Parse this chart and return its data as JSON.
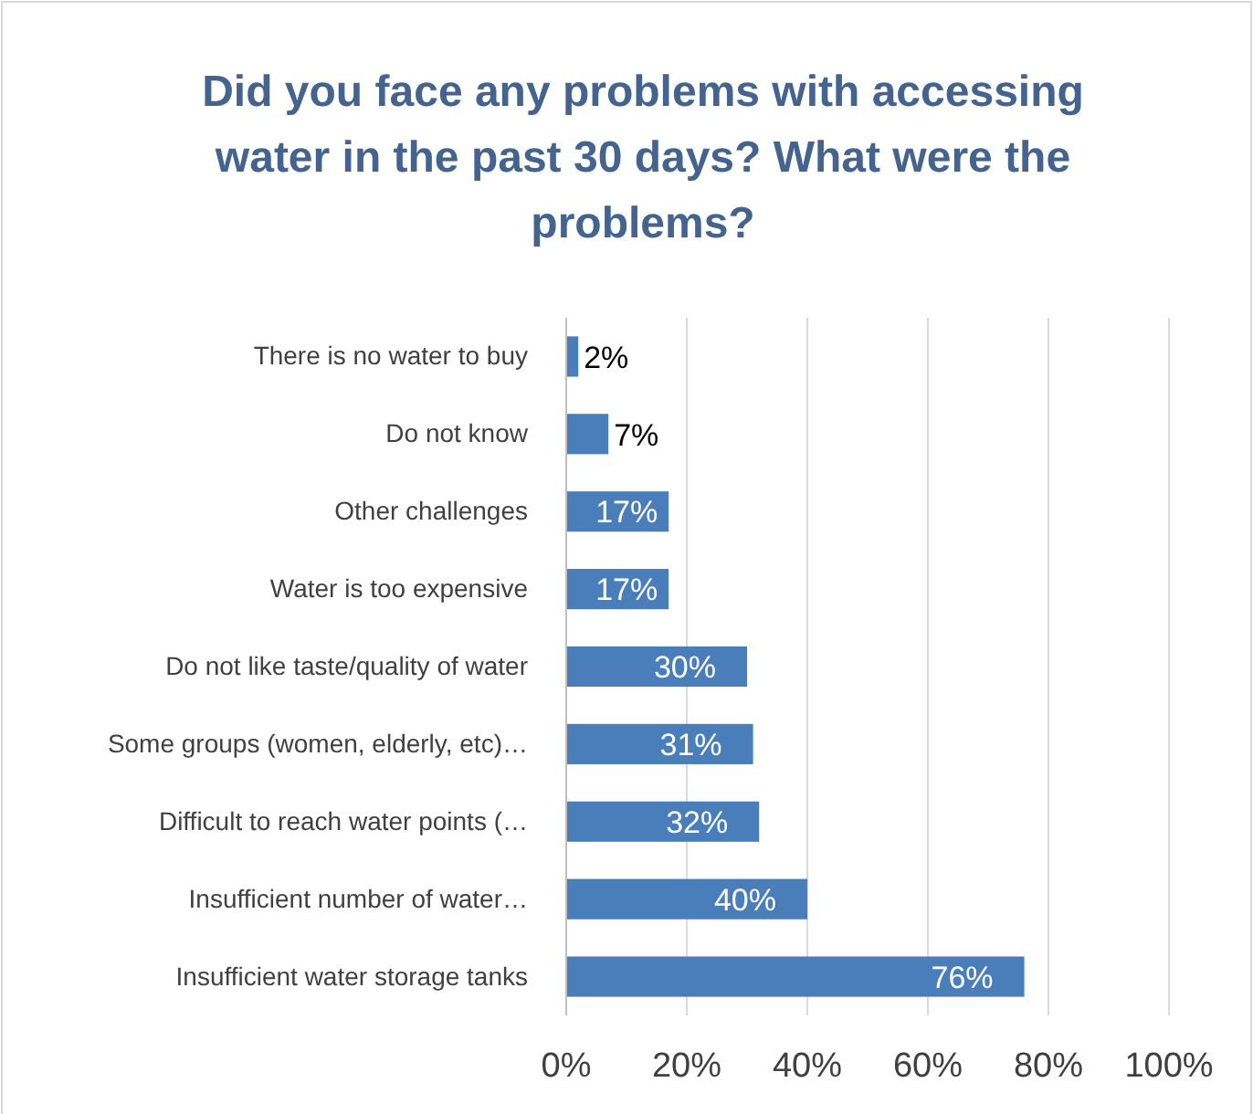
{
  "chart_data": {
    "type": "bar",
    "orientation": "horizontal",
    "title": "Did you face any problems with accessing water in the past 30 days? What were the problems?",
    "categories": [
      "There is no water to buy",
      "Do not know",
      "Other challenges",
      "Water is too expensive",
      "Do not like taste/quality of water",
      "Some groups (women, elderly, etc)…",
      "Difficult to reach water points (…",
      "Insufficient number of water…",
      "Insufficient water storage tanks"
    ],
    "values": [
      2,
      7,
      17,
      17,
      30,
      31,
      32,
      40,
      76
    ],
    "value_labels": [
      "2%",
      "7%",
      "17%",
      "17%",
      "30%",
      "31%",
      "32%",
      "40%",
      "76%"
    ],
    "color": "#4a7ebb",
    "xlim": [
      0,
      100
    ],
    "xticks": [
      {
        "value": 0,
        "label": "0%"
      },
      {
        "value": 20,
        "label": "20%"
      },
      {
        "value": 40,
        "label": "40%"
      },
      {
        "value": 60,
        "label": "60%"
      },
      {
        "value": 80,
        "label": "80%"
      },
      {
        "value": 100,
        "label": "100%"
      }
    ],
    "grid": "x"
  }
}
